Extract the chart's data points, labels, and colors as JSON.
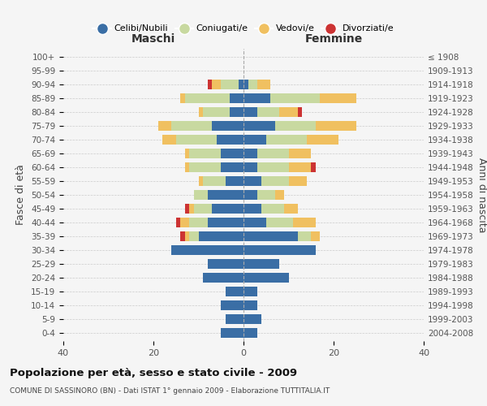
{
  "age_groups": [
    "0-4",
    "5-9",
    "10-14",
    "15-19",
    "20-24",
    "25-29",
    "30-34",
    "35-39",
    "40-44",
    "45-49",
    "50-54",
    "55-59",
    "60-64",
    "65-69",
    "70-74",
    "75-79",
    "80-84",
    "85-89",
    "90-94",
    "95-99",
    "100+"
  ],
  "birth_years": [
    "2004-2008",
    "1999-2003",
    "1994-1998",
    "1989-1993",
    "1984-1988",
    "1979-1983",
    "1974-1978",
    "1969-1973",
    "1964-1968",
    "1959-1963",
    "1954-1958",
    "1949-1953",
    "1944-1948",
    "1939-1943",
    "1934-1938",
    "1929-1933",
    "1924-1928",
    "1919-1923",
    "1914-1918",
    "1909-1913",
    "≤ 1908"
  ],
  "males": {
    "celibi": [
      5,
      4,
      5,
      4,
      9,
      8,
      16,
      10,
      8,
      7,
      8,
      4,
      5,
      5,
      6,
      7,
      3,
      3,
      1,
      0,
      0
    ],
    "coniugati": [
      0,
      0,
      0,
      0,
      0,
      0,
      0,
      2,
      4,
      4,
      3,
      5,
      7,
      7,
      9,
      9,
      6,
      10,
      4,
      0,
      0
    ],
    "vedovi": [
      0,
      0,
      0,
      0,
      0,
      0,
      0,
      1,
      2,
      1,
      0,
      1,
      1,
      1,
      3,
      3,
      1,
      1,
      2,
      0,
      0
    ],
    "divorziati": [
      0,
      0,
      0,
      0,
      0,
      0,
      0,
      1,
      1,
      1,
      0,
      0,
      0,
      0,
      0,
      0,
      0,
      0,
      1,
      0,
      0
    ]
  },
  "females": {
    "nubili": [
      3,
      4,
      3,
      3,
      10,
      8,
      16,
      12,
      5,
      4,
      3,
      4,
      3,
      3,
      5,
      7,
      3,
      6,
      1,
      0,
      0
    ],
    "coniugate": [
      0,
      0,
      0,
      0,
      0,
      0,
      0,
      3,
      6,
      5,
      4,
      6,
      7,
      7,
      9,
      9,
      5,
      11,
      2,
      0,
      0
    ],
    "vedove": [
      0,
      0,
      0,
      0,
      0,
      0,
      0,
      2,
      5,
      3,
      2,
      4,
      5,
      5,
      7,
      9,
      4,
      8,
      3,
      0,
      0
    ],
    "divorziate": [
      0,
      0,
      0,
      0,
      0,
      0,
      0,
      0,
      0,
      0,
      0,
      0,
      1,
      0,
      0,
      0,
      1,
      0,
      0,
      0,
      0
    ]
  },
  "colors": {
    "celibi_nubili": "#3A6EA5",
    "coniugati": "#C8D9A0",
    "vedovi": "#F0C060",
    "divorziati": "#CC3333"
  },
  "title": "Popolazione per età, sesso e stato civile - 2009",
  "subtitle": "COMUNE DI SASSINORO (BN) - Dati ISTAT 1° gennaio 2009 - Elaborazione TUTTITALIA.IT",
  "xlabel_left": "Maschi",
  "xlabel_right": "Femmine",
  "ylabel_left": "Fasce di età",
  "ylabel_right": "Anni di nascita",
  "xlim": 40,
  "background_color": "#f5f5f5"
}
